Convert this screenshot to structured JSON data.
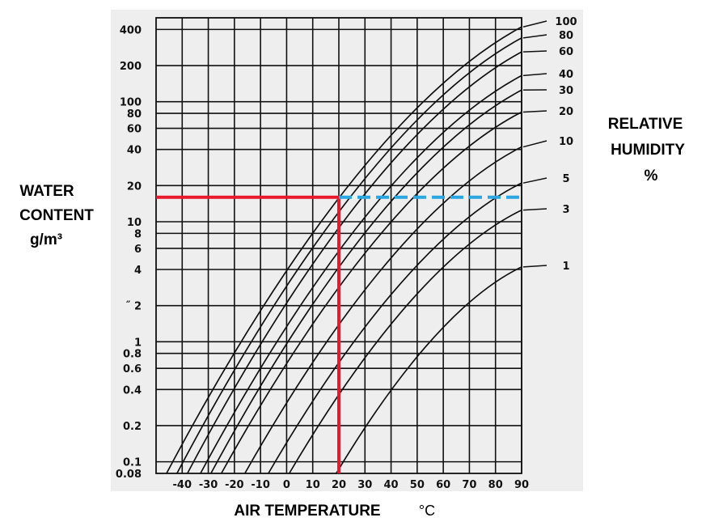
{
  "chart_data": {
    "type": "line",
    "xlabel": "AIR TEMPERATURE",
    "xlabel_unit": "°C",
    "ylabel_lines": [
      "WATER",
      "CONTENT",
      "g/m³"
    ],
    "legend_title_lines": [
      "RELATIVE",
      "HUMIDITY",
      "%"
    ],
    "y_scale": "log",
    "xlim": [
      -50,
      90
    ],
    "ylim": [
      0.08,
      500
    ],
    "grid": true,
    "x_ticks": [
      {
        "value": -40,
        "label": "-40"
      },
      {
        "value": -30,
        "label": "-30"
      },
      {
        "value": -20,
        "label": "-20"
      },
      {
        "value": -10,
        "label": "-10"
      },
      {
        "value": 0,
        "label": "0"
      },
      {
        "value": 10,
        "label": "10"
      },
      {
        "value": 20,
        "label": "20"
      },
      {
        "value": 30,
        "label": "30"
      },
      {
        "value": 40,
        "label": "40"
      },
      {
        "value": 50,
        "label": "50"
      },
      {
        "value": 60,
        "label": "60"
      },
      {
        "value": 70,
        "label": "70"
      },
      {
        "value": 80,
        "label": "80"
      },
      {
        "value": 90,
        "label": "90"
      }
    ],
    "y_ticks": [
      {
        "value": 400,
        "label": "400"
      },
      {
        "value": 200,
        "label": "200"
      },
      {
        "value": 100,
        "label": "100"
      },
      {
        "value": 80,
        "label": "80"
      },
      {
        "value": 60,
        "label": "60"
      },
      {
        "value": 40,
        "label": "40"
      },
      {
        "value": 20,
        "label": "20"
      },
      {
        "value": 10,
        "label": "10"
      },
      {
        "value": 8,
        "label": "8"
      },
      {
        "value": 6,
        "label": "6"
      },
      {
        "value": 4,
        "label": "4"
      },
      {
        "value": 2,
        "label": "˝ 2"
      },
      {
        "value": 1,
        "label": "1"
      },
      {
        "value": 0.8,
        "label": "0.8"
      },
      {
        "value": 0.6,
        "label": "0.6"
      },
      {
        "value": 0.4,
        "label": "0.4"
      },
      {
        "value": 0.2,
        "label": "0.2"
      },
      {
        "value": 0.1,
        "label": "0.1"
      },
      {
        "value": 0.08,
        "label": "0.08"
      }
    ],
    "x_grid": [
      -40,
      -30,
      -20,
      -10,
      0,
      10,
      20,
      30,
      40,
      50,
      60,
      70,
      80,
      90
    ],
    "y_grid": [
      400,
      200,
      100,
      80,
      60,
      40,
      20,
      10,
      8,
      6,
      4,
      2,
      1,
      0.8,
      0.6,
      0.4,
      0.2,
      0.1
    ],
    "series": [
      {
        "name": "100",
        "points": [
          [
            -46,
            0.08
          ],
          [
            90,
            420
          ]
        ]
      },
      {
        "name": "80",
        "points": [
          [
            -42,
            0.08
          ],
          [
            90,
            340
          ]
        ]
      },
      {
        "name": "60",
        "points": [
          [
            -38,
            0.08
          ],
          [
            90,
            260
          ]
        ]
      },
      {
        "name": "40",
        "points": [
          [
            -33,
            0.08
          ],
          [
            90,
            165
          ]
        ]
      },
      {
        "name": "30",
        "points": [
          [
            -29,
            0.08
          ],
          [
            90,
            125
          ]
        ]
      },
      {
        "name": "20",
        "points": [
          [
            -25,
            0.08
          ],
          [
            90,
            82
          ]
        ]
      },
      {
        "name": "10",
        "points": [
          [
            -16,
            0.08
          ],
          [
            90,
            42
          ]
        ]
      },
      {
        "name": "5",
        "points": [
          [
            -7,
            0.08
          ],
          [
            90,
            21
          ]
        ]
      },
      {
        "name": "3",
        "points": [
          [
            1,
            0.08
          ],
          [
            90,
            12.5
          ]
        ]
      },
      {
        "name": "1",
        "points": [
          [
            19,
            0.08
          ],
          [
            90,
            4.2
          ]
        ]
      }
    ],
    "annotations": [
      {
        "type": "reference-line",
        "color": "#e8192c",
        "style": "solid",
        "points": [
          [
            -50,
            16
          ],
          [
            20,
            16
          ],
          [
            20,
            0.08
          ]
        ]
      },
      {
        "type": "reference-line",
        "color": "#2aa7e0",
        "style": "dashed",
        "points": [
          [
            20,
            16
          ],
          [
            90,
            16
          ]
        ]
      }
    ],
    "colors": {
      "plot_background": "#eeeeee",
      "grid": "#111111",
      "curve": "#111111",
      "red_guide": "#e8192c",
      "blue_guide": "#2aa7e0"
    }
  }
}
